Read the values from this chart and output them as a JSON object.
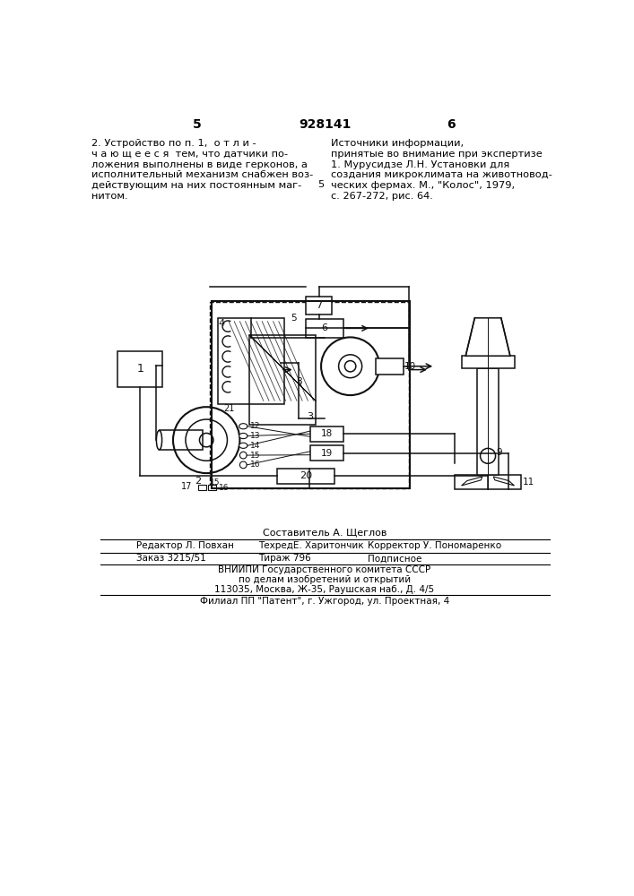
{
  "page_number_left": "5",
  "patent_number": "928141",
  "page_number_right": "6",
  "left_text_line1": "2. Устройство по п. 1,  о т л и -",
  "left_text_line2": "ч а ю щ е е с я  тем, что датчики по-",
  "left_text_line3": "ложения выполнены в виде герконов, а",
  "left_text_line4": "исполнительный механизм снабжен воз-",
  "left_text_line5": "действующим на них постоянным маг-",
  "left_text_line6": "нитом.",
  "margin_num": "5",
  "right_text_title": "Источники информации,",
  "right_text_line1": "принятые во внимание при экспертизе",
  "right_text_line2": "1. Мурусидзе Л.Н. Установки для",
  "right_text_line3": "создания микроклимата на животновод-",
  "right_text_line4": "ческих фермах. М., \"Колос\", 1979,",
  "right_text_line5": "с. 267-272, рис. 64.",
  "footer_compose": "Составитель А. Щеглов",
  "footer_editor": "Редактор Л. Повхан",
  "footer_techred": "ТехредЕ. Харитончик",
  "footer_corrector": "Корректор У. Пономаренко",
  "footer_order": "Заказ 3215/51",
  "footer_tirazh": "Тираж 796",
  "footer_podpis": "Подписное",
  "footer_org1": "ВНИИПИ Государственного комитета СССР",
  "footer_org2": "по делам изобретений и открытий",
  "footer_addr1": "113035, Москва, Ж-35, Раушская наб., Д. 4/5",
  "footer_addr2": "Филиал ПП \"Патент\", г. Ужгород, ул. Проектная, 4",
  "bg_color": "#ffffff",
  "text_color": "#000000",
  "diagram_color": "#111111"
}
